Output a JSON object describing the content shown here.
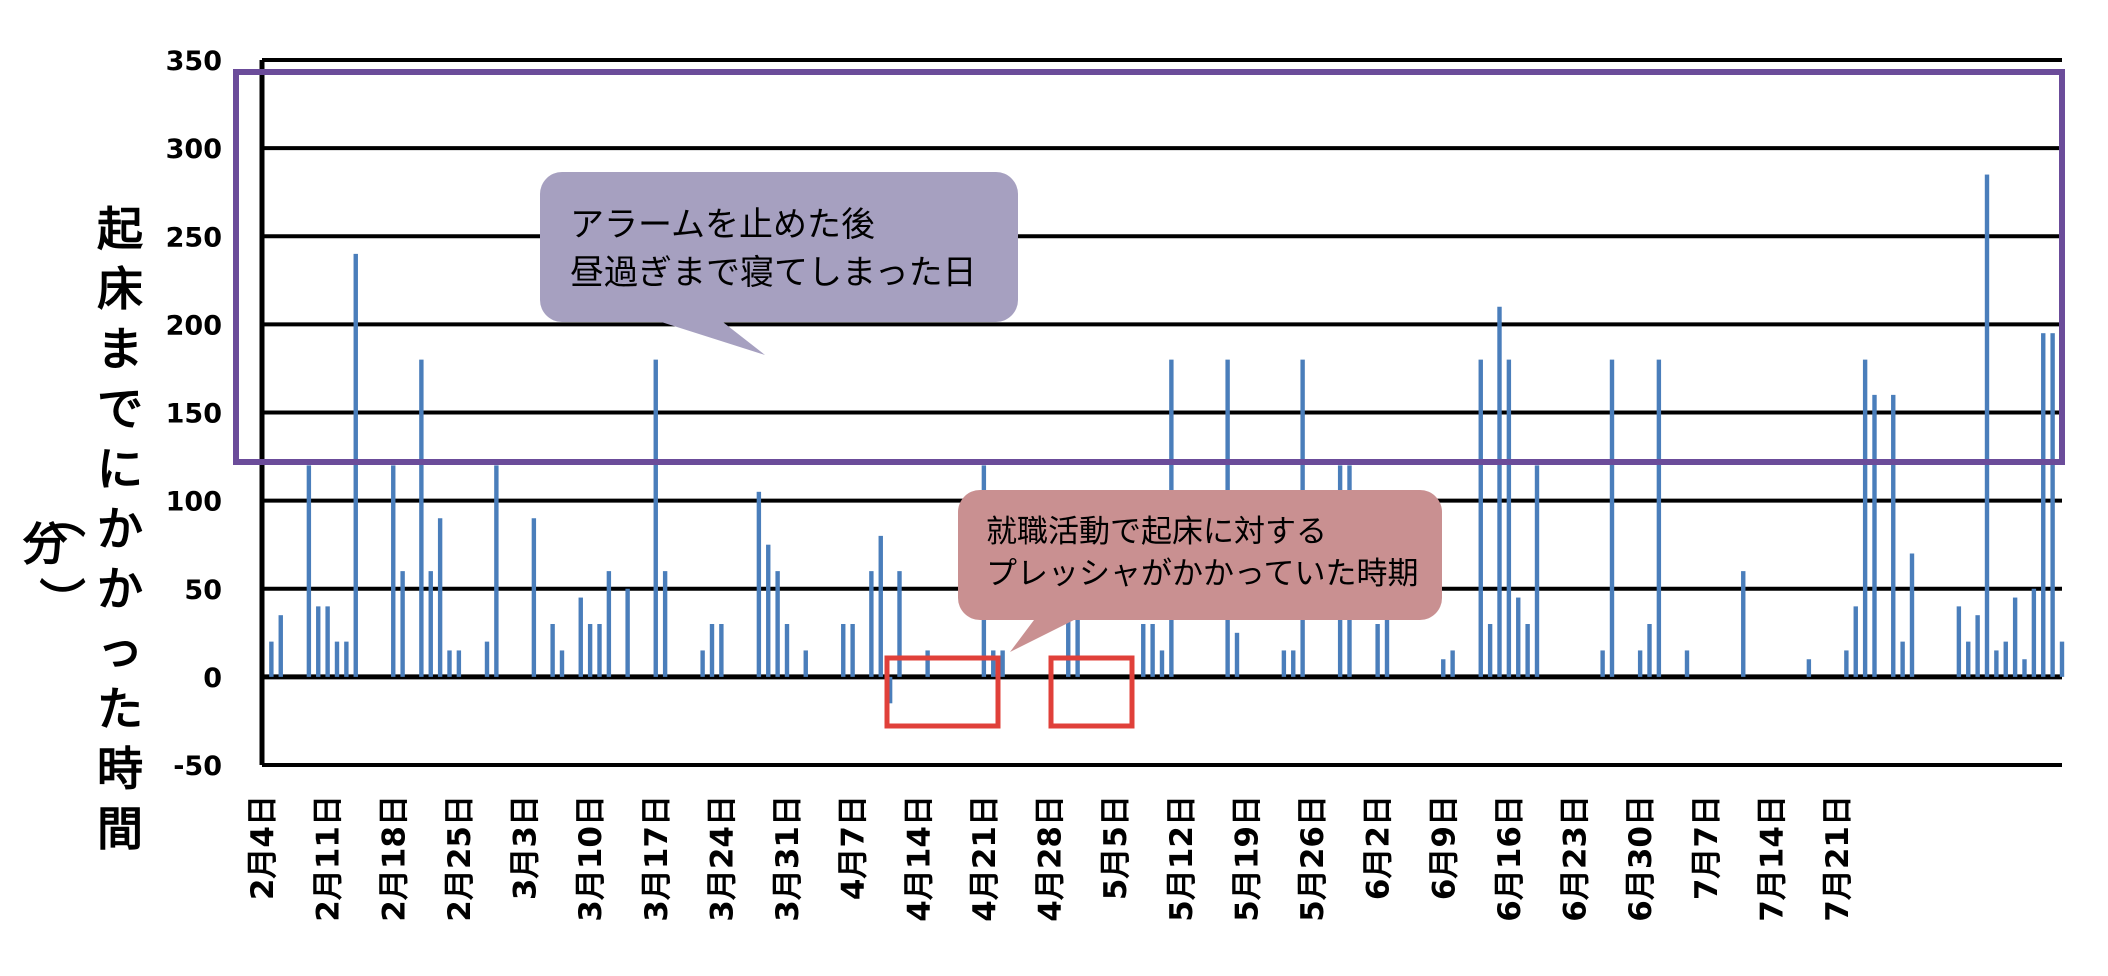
{
  "chart_data": {
    "type": "bar",
    "ylabel": "起床までにかかった時間（分）",
    "ylim": [
      -50,
      350
    ],
    "yticks": [
      350,
      300,
      250,
      200,
      150,
      100,
      50,
      0,
      -50
    ],
    "grid": true,
    "start_date": "2月4日",
    "x_tick_labels": [
      "2月4日",
      "2月11日",
      "2月18日",
      "2月25日",
      "3月3日",
      "3月10日",
      "3月17日",
      "3月24日",
      "3月31日",
      "4月7日",
      "4月14日",
      "4月21日",
      "4月28日",
      "5月5日",
      "5月12日",
      "5月19日",
      "5月26日",
      "6月2日",
      "6月9日",
      "6月16日",
      "6月23日",
      "6月30日",
      "7月7日",
      "7月14日",
      "7月21日"
    ],
    "values": [
      47,
      20,
      35,
      0,
      0,
      120,
      40,
      40,
      20,
      20,
      240,
      0,
      0,
      0,
      120,
      60,
      0,
      180,
      60,
      90,
      15,
      15,
      0,
      0,
      20,
      120,
      0,
      0,
      0,
      90,
      0,
      30,
      15,
      0,
      45,
      30,
      30,
      60,
      0,
      50,
      0,
      0,
      180,
      60,
      0,
      0,
      0,
      15,
      30,
      30,
      0,
      0,
      0,
      105,
      75,
      60,
      30,
      0,
      15,
      0,
      0,
      0,
      30,
      30,
      0,
      60,
      80,
      -15,
      60,
      0,
      0,
      15,
      0,
      0,
      0,
      0,
      0,
      120,
      15,
      15,
      0,
      0,
      0,
      0,
      0,
      0,
      45,
      45,
      0,
      0,
      0,
      0,
      0,
      0,
      30,
      30,
      15,
      180,
      0,
      0,
      0,
      0,
      0,
      180,
      25,
      0,
      0,
      0,
      0,
      15,
      15,
      180,
      0,
      0,
      0,
      120,
      120,
      0,
      0,
      30,
      60,
      0,
      0,
      0,
      0,
      0,
      10,
      15,
      0,
      0,
      180,
      30,
      210,
      180,
      45,
      30,
      120,
      0,
      0,
      0,
      0,
      0,
      0,
      15,
      180,
      0,
      0,
      15,
      30,
      180,
      0,
      0,
      15,
      0,
      0,
      0,
      0,
      0,
      60,
      0,
      0,
      0,
      0,
      0,
      0,
      10,
      0,
      0,
      0,
      15,
      40,
      180,
      160,
      0,
      160,
      20,
      70,
      0,
      0,
      0,
      0,
      40,
      20,
      35,
      285,
      15,
      20,
      45,
      10,
      50,
      195,
      195,
      20
    ]
  },
  "annotations": {
    "purple_callout": [
      "アラームを止めた後",
      "昼過ぎまで寝てしまった日"
    ],
    "pink_callout": [
      "就職活動で起床に対する",
      "プレッシャがかかっていた時期"
    ]
  },
  "colors": {
    "bar": "#4a7ebb",
    "purple_frame": "#6b4c9a",
    "purple_callout_fill": "#a6a0c0",
    "pink_callout_fill": "#c99091",
    "red_box": "#e0403a"
  }
}
